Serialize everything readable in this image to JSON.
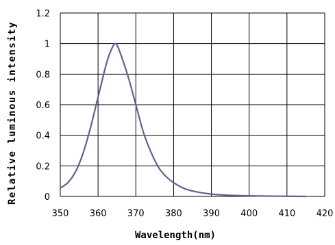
{
  "chart_data": {
    "type": "line",
    "title": "",
    "xlabel": "Wavelength(nm)",
    "ylabel": "Relative luminous intensity",
    "xlim": [
      350,
      420
    ],
    "ylim": [
      0,
      1.2
    ],
    "x_ticks": [
      "350",
      "360",
      "370",
      "380",
      "390",
      "400",
      "410",
      "420"
    ],
    "y_ticks": [
      "0",
      "0.2",
      "0.4",
      "0.6",
      "0.8",
      "1",
      "1.2"
    ],
    "grid": true,
    "legend": "none",
    "series": [
      {
        "color": "#6b5b8c",
        "x": [
          350,
          352,
          354,
          356,
          358,
          360,
          362,
          363,
          364,
          364.5,
          365,
          366,
          368,
          370,
          372,
          374,
          376,
          378,
          380,
          383,
          386,
          390,
          395,
          400,
          405,
          410,
          415
        ],
        "y": [
          0.055,
          0.09,
          0.16,
          0.28,
          0.45,
          0.65,
          0.85,
          0.93,
          0.985,
          1.0,
          0.99,
          0.93,
          0.78,
          0.6,
          0.42,
          0.29,
          0.19,
          0.13,
          0.09,
          0.05,
          0.03,
          0.015,
          0.007,
          0.004,
          0.002,
          0.001,
          0.0
        ]
      }
    ]
  }
}
